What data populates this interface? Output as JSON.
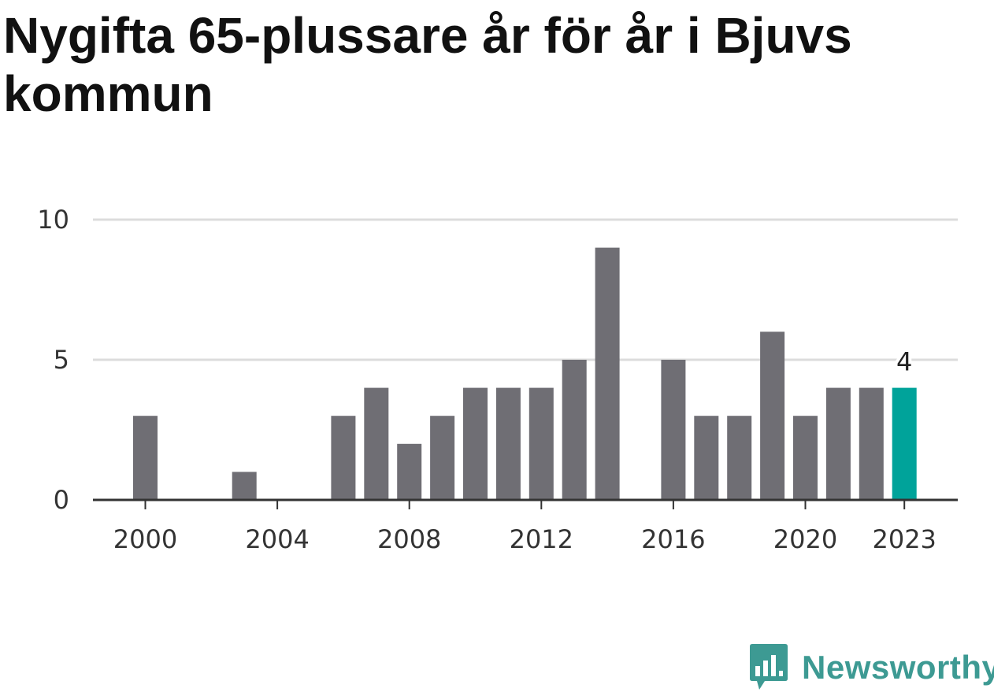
{
  "colors": {
    "bar": "#6f6e74",
    "highlight": "#00a39a",
    "grid": "#dcdcdc",
    "axis": "#333333",
    "brand": "#3d9a93"
  },
  "brand": {
    "name": "Newsworthy",
    "icon": "bar-chart-speech-bubble-icon"
  },
  "chart_data": {
    "type": "bar",
    "title": "Nygifta 65-plussare år för år i Bjuvs kommun",
    "xlabel": "",
    "ylabel": "",
    "categories": [
      2000,
      2001,
      2002,
      2003,
      2004,
      2005,
      2006,
      2007,
      2008,
      2009,
      2010,
      2011,
      2012,
      2013,
      2014,
      2015,
      2016,
      2017,
      2018,
      2019,
      2020,
      2021,
      2022,
      2023
    ],
    "values": [
      3,
      0,
      0,
      1,
      0,
      0,
      3,
      4,
      2,
      3,
      4,
      4,
      4,
      5,
      9,
      0,
      5,
      3,
      3,
      6,
      3,
      4,
      4,
      4
    ],
    "highlight_category": 2023,
    "highlight_label": "4",
    "ylim": [
      0,
      10
    ],
    "y_ticks": [
      0,
      5,
      10
    ],
    "x_ticks": [
      2000,
      2004,
      2008,
      2012,
      2016,
      2020,
      2023
    ],
    "grid": true,
    "legend": "none"
  }
}
